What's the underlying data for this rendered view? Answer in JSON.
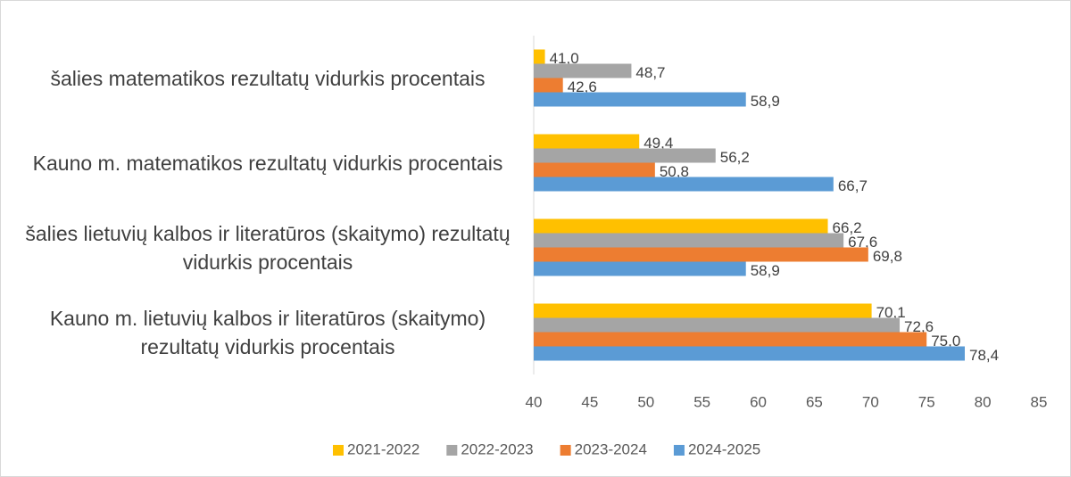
{
  "chart_data": {
    "type": "hbar",
    "categories": [
      "šalies matematikos rezultatų vidurkis procentais",
      "Kauno m. matematikos rezultatų vidurkis procentais",
      "šalies lietuvių kalbos ir literatūros (skaitymo) rezultatų vidurkis procentais",
      "Kauno m. lietuvių kalbos ir literatūros (skaitymo) rezultatų vidurkis procentais"
    ],
    "series": [
      {
        "name": "2021-2022",
        "color": "#ffc000",
        "values": [
          41.0,
          49.4,
          66.2,
          70.1
        ],
        "value_labels": [
          "41,0",
          "49,4",
          "66,2",
          "70,1"
        ]
      },
      {
        "name": "2022-2023",
        "color": "#a5a5a5",
        "values": [
          48.7,
          56.2,
          67.6,
          72.6
        ],
        "value_labels": [
          "48,7",
          "56,2",
          "67,6",
          "72,6"
        ]
      },
      {
        "name": "2023-2024",
        "color": "#ed7d31",
        "values": [
          42.6,
          50.8,
          69.8,
          75.0
        ],
        "value_labels": [
          "42,6",
          "50,8",
          "69,8",
          "75,0"
        ]
      },
      {
        "name": "2024-2025",
        "color": "#5b9bd5",
        "values": [
          58.9,
          66.7,
          58.9,
          78.4
        ],
        "value_labels": [
          "58,9",
          "66,7",
          "58,9",
          "78,4"
        ]
      }
    ],
    "xlim": [
      40,
      85
    ],
    "xticks": [
      40,
      45,
      50,
      55,
      60,
      65,
      70,
      75,
      80,
      85
    ],
    "legend": "bottom"
  }
}
